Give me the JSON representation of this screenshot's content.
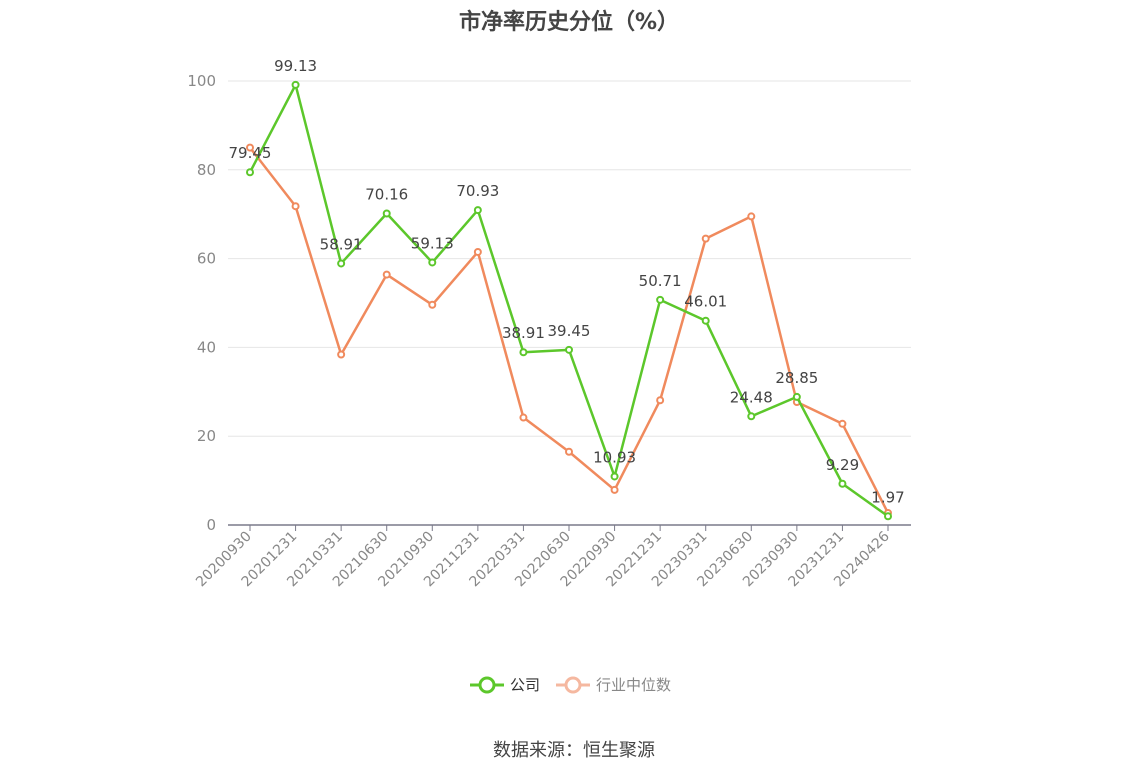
{
  "chart_data": {
    "type": "line",
    "title": "市净率历史分位（%）",
    "categories": [
      "20200930",
      "20201231",
      "20210331",
      "20210630",
      "20210930",
      "20211231",
      "20220331",
      "20220630",
      "20220930",
      "20221231",
      "20230331",
      "20230630",
      "20230930",
      "20231231",
      "20240426"
    ],
    "series": [
      {
        "name": "公司",
        "color": "#5cc72b",
        "values": [
          79.45,
          99.13,
          58.91,
          70.16,
          59.13,
          70.93,
          38.91,
          39.45,
          10.93,
          50.71,
          46.01,
          24.48,
          28.85,
          9.29,
          1.97
        ],
        "labels": [
          "79.45",
          "99.13",
          "58.91",
          "70.16",
          "59.13",
          "70.93",
          "38.91",
          "39.45",
          "10.93",
          "50.71",
          "46.01",
          "24.48",
          "28.85",
          "9.29",
          "1.97"
        ]
      },
      {
        "name": "行业中位数",
        "color": "#f08a5d",
        "values": [
          85,
          71.8,
          38.4,
          56.4,
          49.6,
          61.5,
          24.2,
          16.5,
          7.9,
          28.1,
          64.5,
          69.5,
          27.7,
          22.8,
          2.7
        ]
      }
    ],
    "y_ticks": [
      "0",
      "20",
      "40",
      "60",
      "80",
      "100"
    ],
    "ylim": [
      0,
      100
    ],
    "grid": true,
    "legend": "bottom-center"
  },
  "source_text": "数据来源：恒生聚源"
}
